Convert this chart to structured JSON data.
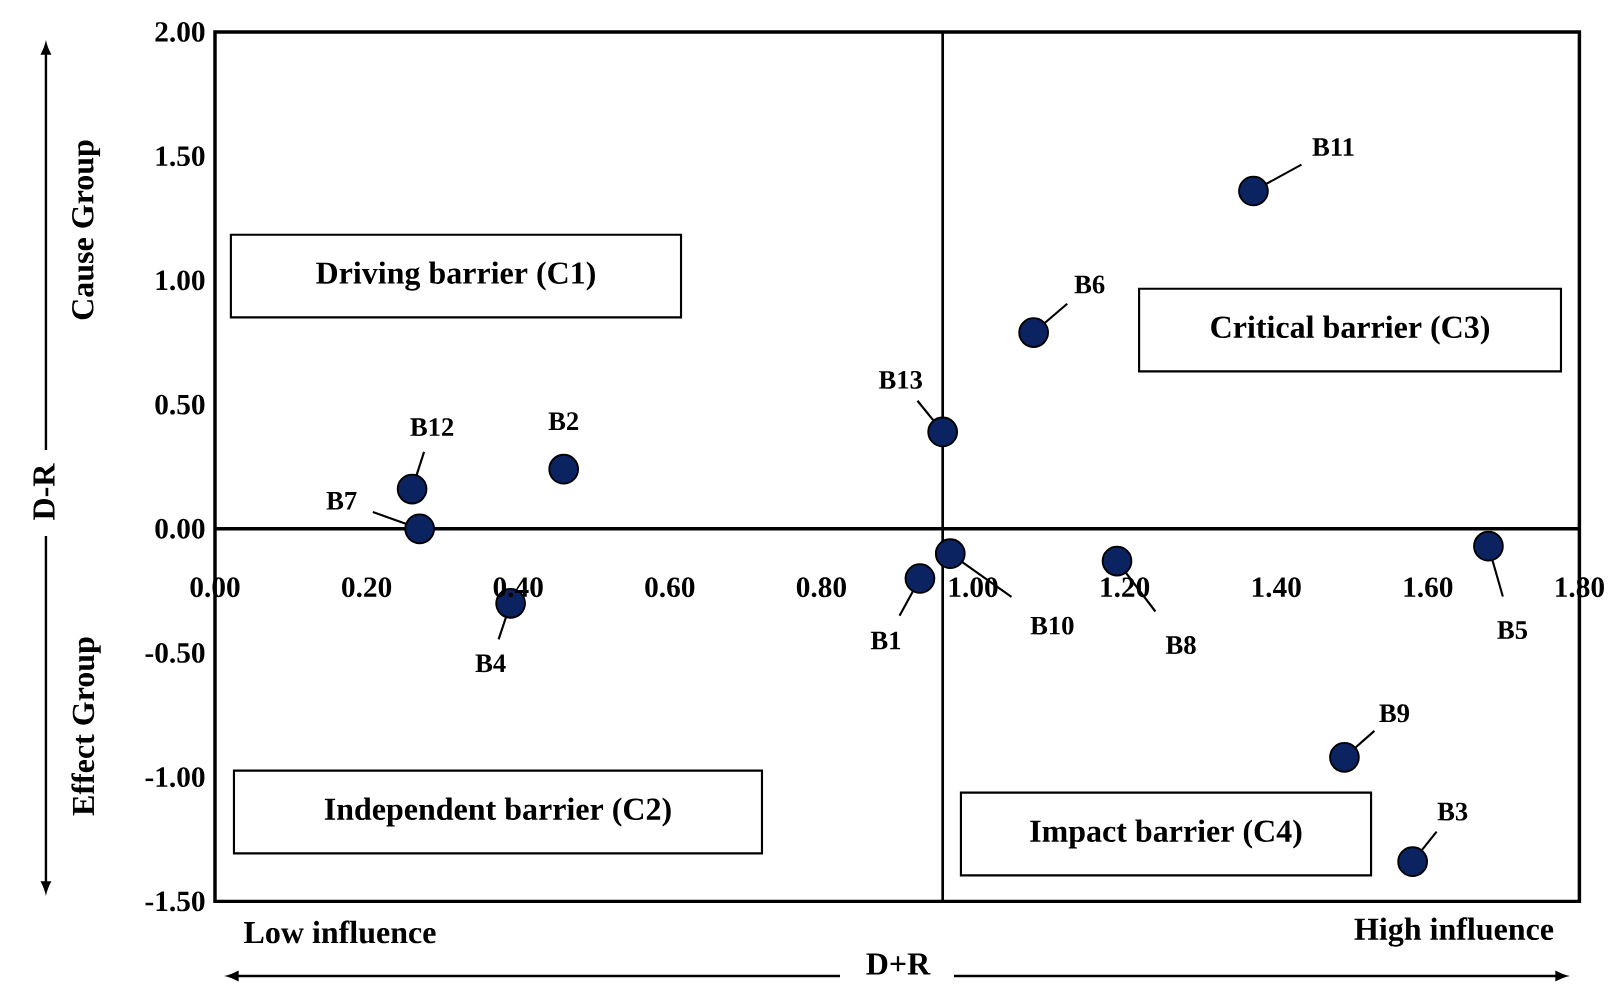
{
  "chart_data": {
    "type": "scatter",
    "xlabel": "D+R",
    "ylabel": "D-R",
    "xlim": [
      0,
      1.8
    ],
    "ylim": [
      -1.5,
      2
    ],
    "xticks": [
      {
        "value": 0,
        "label": "0.00"
      },
      {
        "value": 0.2,
        "label": "0.20"
      },
      {
        "value": 0.4,
        "label": "0.40"
      },
      {
        "value": 0.6,
        "label": "0.60"
      },
      {
        "value": 0.8,
        "label": "0.80"
      },
      {
        "value": 1.0,
        "label": "1.00"
      },
      {
        "value": 1.2,
        "label": "1.20"
      },
      {
        "value": 1.4,
        "label": "1.40"
      },
      {
        "value": 1.6,
        "label": "1.60"
      },
      {
        "value": 1.8,
        "label": "1.80"
      }
    ],
    "yticks": [
      {
        "value": -1.5,
        "label": "-1.50"
      },
      {
        "value": -1,
        "label": "-1.00"
      },
      {
        "value": -0.5,
        "label": "-0.50"
      },
      {
        "value": 0,
        "label": "0.00"
      },
      {
        "value": 0.5,
        "label": "0.50"
      },
      {
        "value": 1,
        "label": "1.00"
      },
      {
        "value": 1.5,
        "label": "1.50"
      },
      {
        "value": 2,
        "label": "2.00"
      }
    ],
    "series": [
      {
        "color": "#0b2461",
        "x": [
          0.93,
          0.46,
          1.58,
          0.39,
          1.68,
          1.08,
          0.27,
          1.19,
          1.49,
          0.97,
          1.37,
          0.26,
          0.96
        ],
        "values": [
          -0.2,
          0.24,
          -1.34,
          -0.3,
          -0.07,
          0.79,
          0.0,
          -0.13,
          -0.92,
          -0.1,
          1.36,
          0.16,
          0.39
        ]
      }
    ],
    "grid": false,
    "ref_lines": [
      {
        "axis": "x",
        "value": 0.96
      }
    ],
    "annotations": [
      "Driving barrier (C1)",
      "Critical barrier (C3)",
      "Independent barrier (C2)",
      "Impact barrier (C4)",
      "Cause Group",
      "Effect Group",
      "Low influence",
      "High influence",
      {
        "text": "B1",
        "x": 0.93,
        "y": -0.2
      },
      {
        "text": "B2",
        "x": 0.46,
        "y": 0.24
      },
      {
        "text": "B3",
        "x": 1.58,
        "y": -1.34
      },
      {
        "text": "B4",
        "x": 0.39,
        "y": -0.3
      },
      {
        "text": "B5",
        "x": 1.68,
        "y": -0.07
      },
      {
        "text": "B6",
        "x": 1.08,
        "y": 0.79
      },
      {
        "text": "B7",
        "x": 0.27,
        "y": 0.0
      },
      {
        "text": "B8",
        "x": 1.19,
        "y": -0.13
      },
      {
        "text": "B9",
        "x": 1.49,
        "y": -0.92
      },
      {
        "text": "B10",
        "x": 0.97,
        "y": -0.1
      },
      {
        "text": "B11",
        "x": 1.37,
        "y": 1.36
      },
      {
        "text": "B12",
        "x": 0.26,
        "y": 0.16
      },
      {
        "text": "B13",
        "x": 0.96,
        "y": 0.39
      }
    ]
  }
}
